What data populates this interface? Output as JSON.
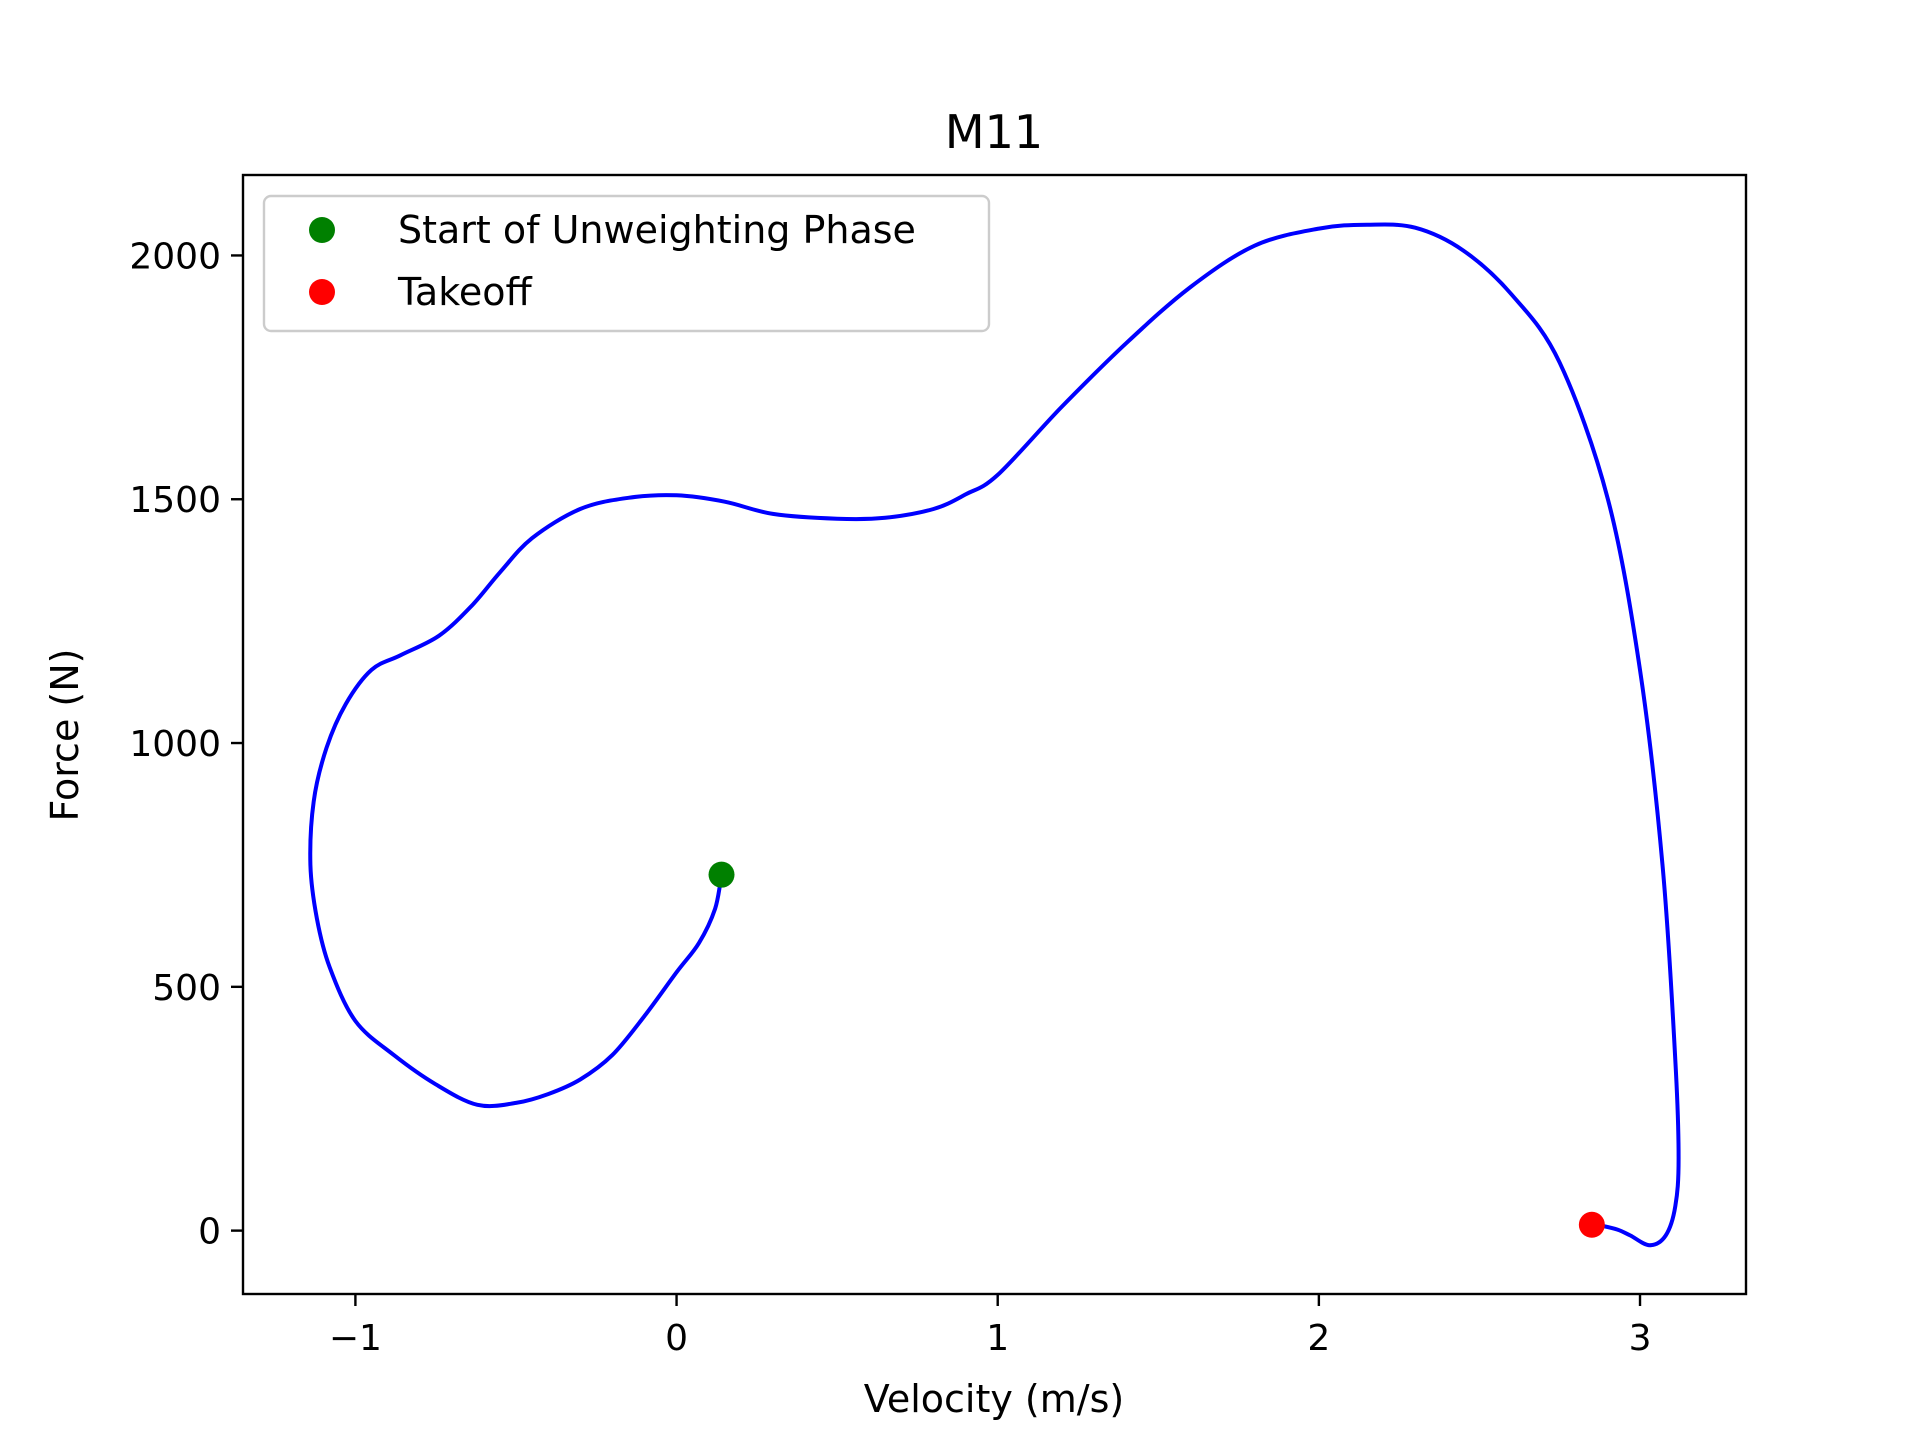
{
  "chart_data": {
    "type": "line",
    "title": "M11",
    "xlabel": "Velocity (m/s)",
    "ylabel": "Force (N)",
    "xlim": [
      -1.35,
      3.33
    ],
    "ylim": [
      -130,
      2165
    ],
    "x_ticks": [
      -1,
      0,
      1,
      2,
      3
    ],
    "x_tick_labels": [
      "−1",
      "0",
      "1",
      "2",
      "3"
    ],
    "y_ticks": [
      0,
      500,
      1000,
      1500,
      2000
    ],
    "y_tick_labels": [
      "0",
      "500",
      "1000",
      "1500",
      "2000"
    ],
    "grid": false,
    "legend_position": "top-left",
    "series": [
      {
        "color": "#0000ff",
        "x": [
          0.14,
          0.12,
          0.07,
          0.0,
          -0.1,
          -0.2,
          -0.3,
          -0.4,
          -0.5,
          -0.62,
          -0.75,
          -0.88,
          -1.0,
          -1.08,
          -1.12,
          -1.14,
          -1.13,
          -1.09,
          -1.03,
          -0.95,
          -0.86,
          -0.74,
          -0.64,
          -0.55,
          -0.45,
          -0.3,
          -0.15,
          0.0,
          0.15,
          0.3,
          0.5,
          0.65,
          0.8,
          0.9,
          1.0,
          1.2,
          1.4,
          1.6,
          1.8,
          2.0,
          2.15,
          2.3,
          2.45,
          2.6,
          2.75,
          2.9,
          3.0,
          3.07,
          3.11,
          3.12,
          3.11,
          3.08,
          3.03,
          2.97,
          2.93,
          2.88,
          2.85
        ],
        "y": [
          730,
          660,
          590,
          530,
          440,
          360,
          310,
          280,
          262,
          258,
          300,
          360,
          430,
          540,
          640,
          750,
          880,
          990,
          1080,
          1150,
          1180,
          1220,
          1280,
          1350,
          1420,
          1480,
          1503,
          1508,
          1495,
          1470,
          1460,
          1462,
          1480,
          1510,
          1550,
          1690,
          1820,
          1935,
          2020,
          2055,
          2063,
          2057,
          2010,
          1920,
          1780,
          1500,
          1150,
          750,
          350,
          150,
          50,
          -10,
          -30,
          -10,
          2,
          10,
          12
        ]
      },
      {
        "name": "Start of Unweighting Phase",
        "type": "scatter",
        "color": "#008000",
        "x": [
          0.14
        ],
        "y": [
          730
        ]
      },
      {
        "name": "Takeoff",
        "type": "scatter",
        "color": "#ff0000",
        "x": [
          2.85
        ],
        "y": [
          12
        ]
      }
    ]
  }
}
